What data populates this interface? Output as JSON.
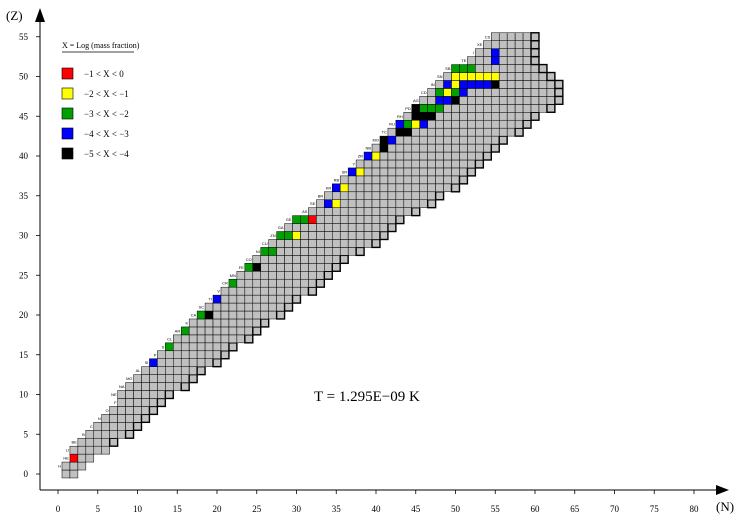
{
  "chart_data": {
    "type": "heatmap",
    "title": "",
    "xlabel": "(N)",
    "ylabel": "(Z)",
    "xlim": [
      -2,
      83
    ],
    "ylim": [
      -1,
      57
    ],
    "x_ticks": [
      "0",
      "5",
      "10",
      "15",
      "20",
      "25",
      "30",
      "35",
      "40",
      "45",
      "50",
      "55",
      "60",
      "65",
      "70",
      "75",
      "80"
    ],
    "y_ticks": [
      "0",
      "5",
      "10",
      "15",
      "20",
      "25",
      "30",
      "35",
      "40",
      "45",
      "50",
      "55"
    ],
    "annotation": "T = 1.295E−09 K",
    "legend": {
      "title": "X = Log (mass fraction)",
      "placement": "top-left",
      "entries": [
        {
          "label": "−1 < X < 0",
          "color": "#ff0000"
        },
        {
          "label": "−2 < X < −1",
          "color": "#ffff00"
        },
        {
          "label": "−3 < X < −2",
          "color": "#00a000"
        },
        {
          "label": "−4 < X < −3",
          "color": "#0000ff"
        },
        {
          "label": "−5 < X < −4",
          "color": "#000000"
        }
      ]
    },
    "base_color": "#c0c0c0",
    "stable_band": [
      [
        0,
        1,
        2
      ],
      [
        1,
        1,
        3
      ],
      [
        2,
        2,
        4
      ],
      [
        3,
        2,
        6
      ],
      [
        4,
        3,
        7
      ],
      [
        5,
        4,
        9
      ],
      [
        6,
        5,
        10
      ],
      [
        7,
        6,
        11
      ],
      [
        8,
        7,
        12
      ],
      [
        9,
        8,
        13
      ],
      [
        10,
        8,
        14
      ],
      [
        11,
        9,
        16
      ],
      [
        12,
        10,
        17
      ],
      [
        13,
        11,
        18
      ],
      [
        14,
        12,
        20
      ],
      [
        15,
        13,
        21
      ],
      [
        16,
        14,
        22
      ],
      [
        17,
        15,
        24
      ],
      [
        18,
        16,
        25
      ],
      [
        19,
        17,
        26
      ],
      [
        20,
        18,
        28
      ],
      [
        21,
        19,
        29
      ],
      [
        22,
        20,
        30
      ],
      [
        23,
        21,
        32
      ],
      [
        24,
        22,
        33
      ],
      [
        25,
        23,
        34
      ],
      [
        26,
        24,
        35
      ],
      [
        27,
        25,
        36
      ],
      [
        28,
        26,
        38
      ],
      [
        29,
        27,
        40
      ],
      [
        30,
        28,
        41
      ],
      [
        31,
        29,
        42
      ],
      [
        32,
        30,
        43
      ],
      [
        33,
        32,
        45
      ],
      [
        34,
        33,
        47
      ],
      [
        35,
        34,
        48
      ],
      [
        36,
        35,
        50
      ],
      [
        37,
        36,
        51
      ],
      [
        38,
        37,
        52
      ],
      [
        39,
        38,
        53
      ],
      [
        40,
        39,
        54
      ],
      [
        41,
        40,
        55
      ],
      [
        42,
        41,
        56
      ],
      [
        43,
        42,
        58
      ],
      [
        44,
        43,
        59
      ],
      [
        45,
        44,
        60
      ],
      [
        46,
        45,
        62
      ],
      [
        47,
        46,
        63
      ],
      [
        48,
        47,
        63
      ],
      [
        49,
        48,
        63
      ],
      [
        50,
        49,
        62
      ],
      [
        51,
        50,
        61
      ],
      [
        52,
        52,
        60
      ],
      [
        53,
        53,
        60
      ],
      [
        54,
        54,
        60
      ],
      [
        55,
        55,
        60
      ]
    ],
    "cells": [
      {
        "z": 1,
        "n": 0,
        "c": "red"
      },
      {
        "z": 2,
        "n": 2,
        "c": "red"
      },
      {
        "z": 14,
        "n": 12,
        "c": "blue"
      },
      {
        "z": 16,
        "n": 12,
        "c": "blue"
      },
      {
        "z": 16,
        "n": 13,
        "c": "blue"
      },
      {
        "z": 16,
        "n": 14,
        "c": "green"
      },
      {
        "z": 18,
        "n": 14,
        "c": "black"
      },
      {
        "z": 18,
        "n": 15,
        "c": "green"
      },
      {
        "z": 18,
        "n": 16,
        "c": "green"
      },
      {
        "z": 20,
        "n": 16,
        "c": "blue"
      },
      {
        "z": 20,
        "n": 17,
        "c": "green"
      },
      {
        "z": 20,
        "n": 18,
        "c": "green"
      },
      {
        "z": 20,
        "n": 19,
        "c": "black"
      },
      {
        "z": 22,
        "n": 19,
        "c": "blue"
      },
      {
        "z": 22,
        "n": 20,
        "c": "blue"
      },
      {
        "z": 24,
        "n": 20,
        "c": "blue"
      },
      {
        "z": 24,
        "n": 21,
        "c": "blue"
      },
      {
        "z": 24,
        "n": 22,
        "c": "green"
      },
      {
        "z": 26,
        "n": 22,
        "c": "blue"
      },
      {
        "z": 26,
        "n": 23,
        "c": "green"
      },
      {
        "z": 26,
        "n": 24,
        "c": "green"
      },
      {
        "z": 26,
        "n": 25,
        "c": "black"
      },
      {
        "z": 28,
        "n": 25,
        "c": "blue"
      },
      {
        "z": 28,
        "n": 26,
        "c": "green"
      },
      {
        "z": 28,
        "n": 27,
        "c": "green"
      },
      {
        "z": 30,
        "n": 28,
        "c": "green"
      },
      {
        "z": 30,
        "n": 29,
        "c": "green"
      },
      {
        "z": 30,
        "n": 30,
        "c": "yellow"
      },
      {
        "z": 32,
        "n": 30,
        "c": "green"
      },
      {
        "z": 32,
        "n": 31,
        "c": "green"
      },
      {
        "z": 32,
        "n": 32,
        "c": "red"
      },
      {
        "z": 34,
        "n": 34,
        "c": "blue"
      },
      {
        "z": 34,
        "n": 35,
        "c": "yellow"
      },
      {
        "z": 36,
        "n": 35,
        "c": "blue"
      },
      {
        "z": 36,
        "n": 36,
        "c": "yellow"
      },
      {
        "z": 38,
        "n": 37,
        "c": "blue"
      },
      {
        "z": 38,
        "n": 38,
        "c": "yellow"
      },
      {
        "z": 40,
        "n": 39,
        "c": "blue"
      },
      {
        "z": 40,
        "n": 40,
        "c": "yellow"
      },
      {
        "z": 41,
        "n": 41,
        "c": "black"
      },
      {
        "z": 42,
        "n": 41,
        "c": "black"
      },
      {
        "z": 42,
        "n": 42,
        "c": "blue"
      },
      {
        "z": 43,
        "n": 43,
        "c": "black"
      },
      {
        "z": 43,
        "n": 44,
        "c": "black"
      },
      {
        "z": 44,
        "n": 43,
        "c": "blue"
      },
      {
        "z": 44,
        "n": 44,
        "c": "green"
      },
      {
        "z": 44,
        "n": 45,
        "c": "yellow"
      },
      {
        "z": 44,
        "n": 46,
        "c": "blue"
      },
      {
        "z": 45,
        "n": 45,
        "c": "black"
      },
      {
        "z": 45,
        "n": 46,
        "c": "black"
      },
      {
        "z": 45,
        "n": 47,
        "c": "black"
      },
      {
        "z": 46,
        "n": 45,
        "c": "black"
      },
      {
        "z": 46,
        "n": 46,
        "c": "green"
      },
      {
        "z": 46,
        "n": 47,
        "c": "green"
      },
      {
        "z": 46,
        "n": 48,
        "c": "green"
      },
      {
        "z": 47,
        "n": 48,
        "c": "blue"
      },
      {
        "z": 47,
        "n": 49,
        "c": "blue"
      },
      {
        "z": 47,
        "n": 50,
        "c": "black"
      },
      {
        "z": 48,
        "n": 48,
        "c": "green"
      },
      {
        "z": 48,
        "n": 49,
        "c": "yellow"
      },
      {
        "z": 48,
        "n": 50,
        "c": "green"
      },
      {
        "z": 48,
        "n": 51,
        "c": "blue"
      },
      {
        "z": 49,
        "n": 49,
        "c": "blue"
      },
      {
        "z": 49,
        "n": 50,
        "c": "yellow"
      },
      {
        "z": 49,
        "n": 51,
        "c": "blue"
      },
      {
        "z": 49,
        "n": 52,
        "c": "blue"
      },
      {
        "z": 49,
        "n": 53,
        "c": "blue"
      },
      {
        "z": 49,
        "n": 54,
        "c": "blue"
      },
      {
        "z": 49,
        "n": 55,
        "c": "black"
      },
      {
        "z": 50,
        "n": 50,
        "c": "yellow"
      },
      {
        "z": 50,
        "n": 51,
        "c": "yellow"
      },
      {
        "z": 50,
        "n": 52,
        "c": "yellow"
      },
      {
        "z": 50,
        "n": 53,
        "c": "yellow"
      },
      {
        "z": 50,
        "n": 54,
        "c": "yellow"
      },
      {
        "z": 50,
        "n": 55,
        "c": "yellow"
      },
      {
        "z": 51,
        "n": 50,
        "c": "green"
      },
      {
        "z": 51,
        "n": 51,
        "c": "green"
      },
      {
        "z": 51,
        "n": 52,
        "c": "green"
      },
      {
        "z": 52,
        "n": 55,
        "c": "blue"
      },
      {
        "z": 53,
        "n": 55,
        "c": "blue"
      }
    ],
    "element_labels": [
      {
        "z": 1,
        "label": "H"
      },
      {
        "z": 2,
        "label": "HE"
      },
      {
        "z": 3,
        "label": "LI"
      },
      {
        "z": 4,
        "label": "BE"
      },
      {
        "z": 5,
        "label": "B"
      },
      {
        "z": 6,
        "label": "C"
      },
      {
        "z": 7,
        "label": "N"
      },
      {
        "z": 8,
        "label": "O"
      },
      {
        "z": 9,
        "label": "F"
      },
      {
        "z": 10,
        "label": "NE"
      },
      {
        "z": 11,
        "label": "NA"
      },
      {
        "z": 12,
        "label": "MG"
      },
      {
        "z": 13,
        "label": "AL"
      },
      {
        "z": 14,
        "label": "SI"
      },
      {
        "z": 15,
        "label": "P"
      },
      {
        "z": 16,
        "label": "S"
      },
      {
        "z": 17,
        "label": "CL"
      },
      {
        "z": 18,
        "label": "AR"
      },
      {
        "z": 19,
        "label": "K"
      },
      {
        "z": 20,
        "label": "CA"
      },
      {
        "z": 21,
        "label": "SC"
      },
      {
        "z": 22,
        "label": "TI"
      },
      {
        "z": 23,
        "label": "V"
      },
      {
        "z": 24,
        "label": "CR"
      },
      {
        "z": 25,
        "label": "MN"
      },
      {
        "z": 26,
        "label": "FE"
      },
      {
        "z": 27,
        "label": "CO"
      },
      {
        "z": 28,
        "label": "NI"
      },
      {
        "z": 29,
        "label": "CU"
      },
      {
        "z": 30,
        "label": "ZN"
      },
      {
        "z": 31,
        "label": "GA"
      },
      {
        "z": 32,
        "label": "GE"
      },
      {
        "z": 33,
        "label": "AS"
      },
      {
        "z": 34,
        "label": "SE"
      },
      {
        "z": 35,
        "label": "BR"
      },
      {
        "z": 36,
        "label": "KR"
      },
      {
        "z": 37,
        "label": "RB"
      },
      {
        "z": 38,
        "label": "SR"
      },
      {
        "z": 39,
        "label": "Y"
      },
      {
        "z": 40,
        "label": "ZR"
      },
      {
        "z": 41,
        "label": "NB"
      },
      {
        "z": 42,
        "label": "MO"
      },
      {
        "z": 43,
        "label": "TC"
      },
      {
        "z": 44,
        "label": "RU"
      },
      {
        "z": 45,
        "label": "RH"
      },
      {
        "z": 46,
        "label": "PD"
      },
      {
        "z": 47,
        "label": "AG"
      },
      {
        "z": 48,
        "label": "CD"
      },
      {
        "z": 49,
        "label": "IN"
      },
      {
        "z": 50,
        "label": "SN"
      },
      {
        "z": 51,
        "label": "SB"
      },
      {
        "z": 52,
        "label": "TE"
      },
      {
        "z": 53,
        "label": "I"
      },
      {
        "z": 54,
        "label": "XE"
      },
      {
        "z": 55,
        "label": "CS"
      }
    ]
  }
}
